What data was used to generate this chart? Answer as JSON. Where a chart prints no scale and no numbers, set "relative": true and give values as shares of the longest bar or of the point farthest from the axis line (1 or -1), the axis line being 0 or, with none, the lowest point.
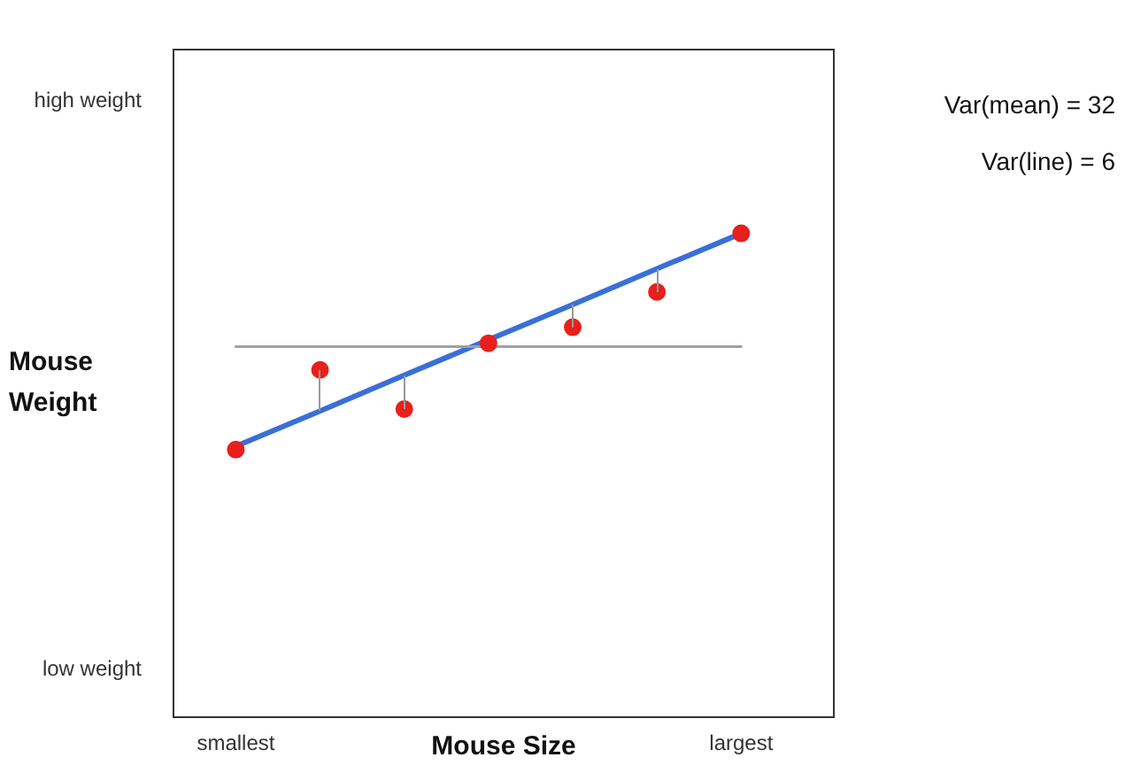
{
  "chart_data": {
    "type": "scatter",
    "relative": true,
    "xlabel": "Mouse Size",
    "ylabel": "Mouse Weight",
    "categories": [
      "smallest",
      null,
      null,
      null,
      null,
      null,
      "largest"
    ],
    "annotations": [
      "high weight",
      "low weight",
      "Var(mean) = 32",
      "Var(line) = 6"
    ],
    "grid": false,
    "legend": false,
    "marker": "circle",
    "series": [
      {
        "type": "line",
        "color": "#a0a0a0",
        "values": [
          0.766,
          0.766,
          0.766,
          0.766,
          0.766,
          0.766,
          0.766
        ],
        "marker": "none"
      },
      {
        "type": "line",
        "color": "#3a6fd8",
        "values": [
          0.56,
          0.633,
          0.707,
          0.78,
          0.853,
          0.927,
          1.0
        ],
        "marker": "none"
      },
      {
        "color": "#e8201c",
        "values": [
          0.553,
          0.718,
          0.637,
          0.773,
          0.806,
          0.879,
          1.0
        ]
      }
    ]
  }
}
